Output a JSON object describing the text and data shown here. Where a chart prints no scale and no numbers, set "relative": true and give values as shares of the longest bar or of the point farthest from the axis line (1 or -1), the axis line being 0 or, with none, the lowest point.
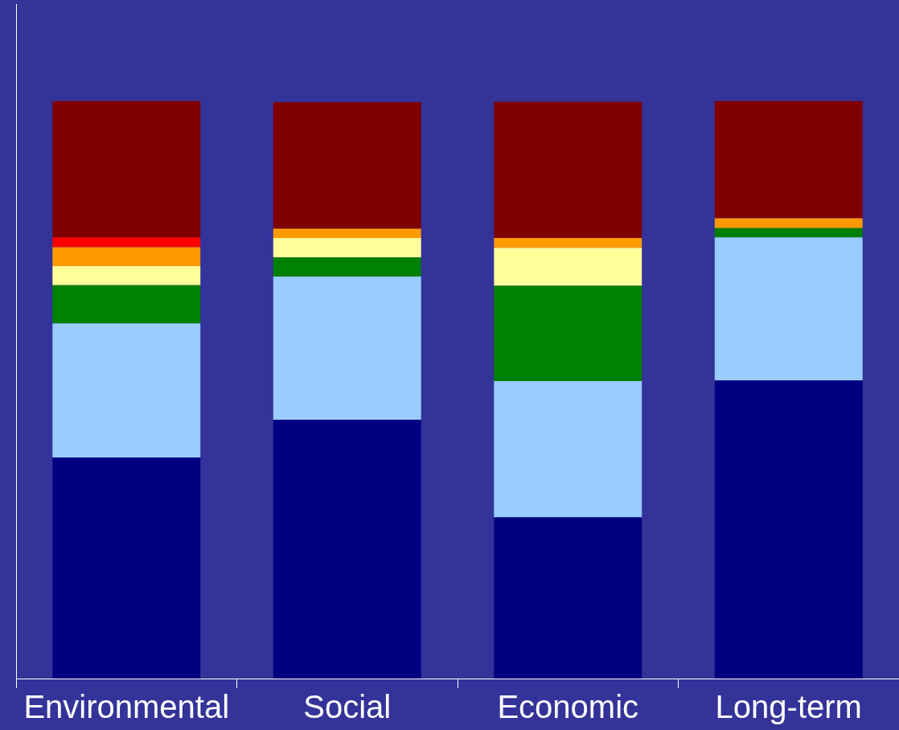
{
  "chart_data": {
    "type": "bar",
    "stacked": true,
    "relative": true,
    "legend": false,
    "grid": false,
    "categories": [
      "Environmental",
      "Social",
      "Economic",
      "Long-term"
    ],
    "series": [
      {
        "color": "#000080",
        "values": [
          0.383,
          0.448,
          0.279,
          0.516
        ]
      },
      {
        "color": "#99ccff",
        "values": [
          0.232,
          0.248,
          0.236,
          0.248
        ]
      },
      {
        "color": "#008000",
        "values": [
          0.066,
          0.033,
          0.165,
          0.016
        ]
      },
      {
        "color": "#ffff99",
        "values": [
          0.033,
          0.034,
          0.066,
          null
        ]
      },
      {
        "color": "#ff9900",
        "values": [
          0.033,
          0.016,
          0.017,
          0.017
        ]
      },
      {
        "color": "#ff0000",
        "values": [
          0.017,
          null,
          null,
          null
        ]
      },
      {
        "color": "#800000",
        "values": [
          0.236,
          0.219,
          0.236,
          0.203
        ]
      }
    ]
  }
}
